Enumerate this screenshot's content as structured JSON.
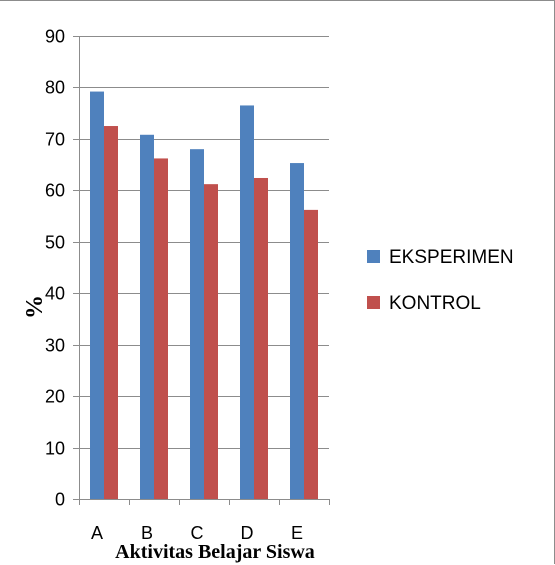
{
  "chart_data": {
    "type": "bar",
    "categories": [
      "A",
      "B",
      "C",
      "D",
      "E"
    ],
    "series": [
      {
        "name": "EKSPERIMEN",
        "color": "#4F81BD",
        "values": [
          79.2,
          70.8,
          68.0,
          76.5,
          65.3
        ]
      },
      {
        "name": "KONTROL",
        "color": "#C0504D",
        "values": [
          72.5,
          66.2,
          61.2,
          62.4,
          56.2
        ]
      }
    ],
    "title": "",
    "xlabel": "Aktivitas Belajar Siswa",
    "ylabel": "%",
    "ylim": [
      0,
      90
    ],
    "yticks": [
      0,
      10,
      20,
      30,
      40,
      50,
      60,
      70,
      80,
      90
    ],
    "grid": true,
    "legend_position": "right"
  }
}
